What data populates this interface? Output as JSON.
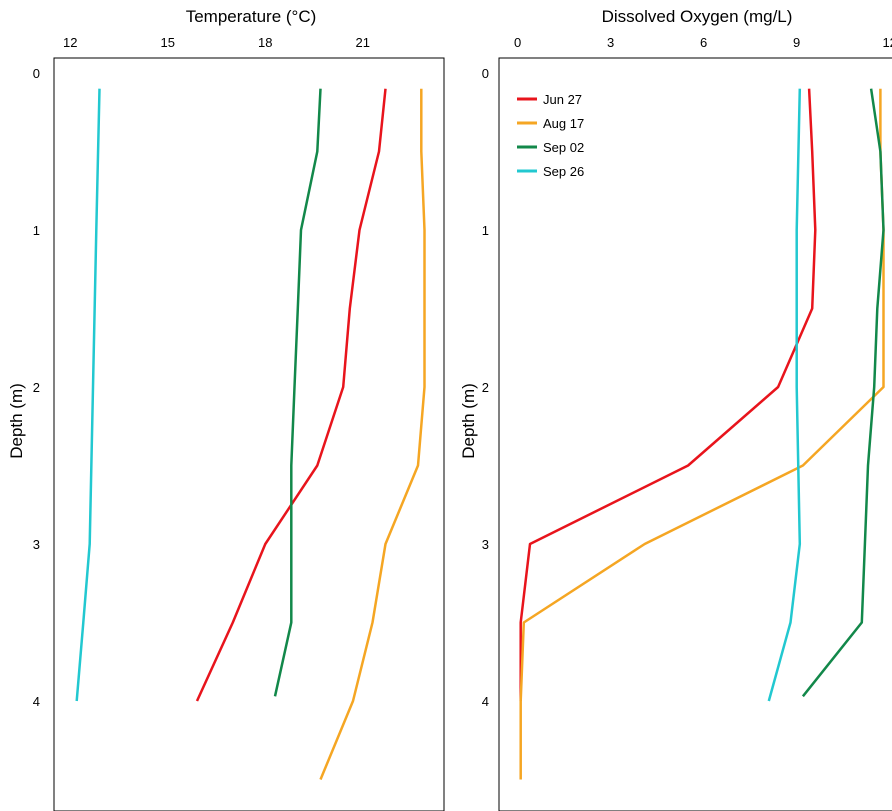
{
  "chart_data": [
    {
      "type": "line",
      "title": "",
      "xlabel": "Temperature (°C)",
      "ylabel": "Depth (m)",
      "x_axis_position": "top",
      "y_reversed": true,
      "xlim": [
        11.5,
        23.5
      ],
      "ylim": [
        0,
        4.7
      ],
      "xticks": [
        "12",
        "15",
        "18",
        "21"
      ],
      "yticks": [
        "0",
        "1",
        "2",
        "3",
        "4"
      ],
      "grid": false,
      "series": [
        {
          "name": "Jun 27",
          "color": "#e8141c",
          "points": [
            [
              21.7,
              0.1
            ],
            [
              21.5,
              0.5
            ],
            [
              20.9,
              1.0
            ],
            [
              20.6,
              1.5
            ],
            [
              20.4,
              2.0
            ],
            [
              19.6,
              2.5
            ],
            [
              18.0,
              3.0
            ],
            [
              17.0,
              3.5
            ],
            [
              15.9,
              4.0
            ]
          ]
        },
        {
          "name": "Aug 17",
          "color": "#f5a623",
          "points": [
            [
              22.8,
              0.1
            ],
            [
              22.8,
              0.5
            ],
            [
              22.9,
              1.0
            ],
            [
              22.9,
              1.5
            ],
            [
              22.9,
              2.0
            ],
            [
              22.7,
              2.5
            ],
            [
              21.7,
              3.0
            ],
            [
              21.3,
              3.5
            ],
            [
              20.7,
              4.0
            ],
            [
              19.7,
              4.5
            ]
          ]
        },
        {
          "name": "Sep 02",
          "color": "#12884a",
          "points": [
            [
              19.7,
              0.1
            ],
            [
              19.6,
              0.5
            ],
            [
              19.1,
              1.0
            ],
            [
              19.0,
              1.5
            ],
            [
              18.9,
              2.0
            ],
            [
              18.8,
              2.5
            ],
            [
              18.8,
              3.0
            ],
            [
              18.8,
              3.5
            ],
            [
              18.3,
              3.97
            ]
          ]
        },
        {
          "name": "Sep 26",
          "color": "#22c8d0",
          "points": [
            [
              12.9,
              0.1
            ],
            [
              12.8,
              1.0
            ],
            [
              12.7,
              2.0
            ],
            [
              12.6,
              3.0
            ],
            [
              12.4,
              3.5
            ],
            [
              12.2,
              4.0
            ]
          ]
        }
      ]
    },
    {
      "type": "line",
      "title": "",
      "xlabel": "Dissolved Oxygen (mg/L)",
      "ylabel": "Depth (m)",
      "x_axis_position": "top",
      "y_reversed": true,
      "xlim": [
        -0.6,
        12.3
      ],
      "ylim": [
        0,
        4.7
      ],
      "xticks": [
        "0",
        "3",
        "6",
        "9",
        "12"
      ],
      "yticks": [
        "0",
        "1",
        "2",
        "3",
        "4"
      ],
      "grid": false,
      "legend": {
        "position": "top-left",
        "entries": [
          "Jun 27",
          "Aug 17",
          "Sep 02",
          "Sep 26"
        ]
      },
      "series": [
        {
          "name": "Jun 27",
          "color": "#e8141c",
          "points": [
            [
              9.4,
              0.1
            ],
            [
              9.5,
              0.5
            ],
            [
              9.6,
              1.0
            ],
            [
              9.5,
              1.5
            ],
            [
              8.4,
              2.0
            ],
            [
              5.5,
              2.5
            ],
            [
              0.4,
              3.0
            ],
            [
              0.1,
              3.5
            ],
            [
              0.1,
              3.75
            ],
            [
              0.1,
              4.0
            ]
          ]
        },
        {
          "name": "Aug 17",
          "color": "#f5a623",
          "points": [
            [
              11.7,
              0.1
            ],
            [
              11.7,
              0.5
            ],
            [
              11.8,
              1.0
            ],
            [
              11.8,
              1.5
            ],
            [
              11.8,
              2.0
            ],
            [
              9.2,
              2.5
            ],
            [
              4.1,
              3.0
            ],
            [
              0.2,
              3.5
            ],
            [
              0.1,
              4.0
            ],
            [
              0.1,
              4.5
            ]
          ]
        },
        {
          "name": "Sep 02",
          "color": "#12884a",
          "points": [
            [
              11.4,
              0.1
            ],
            [
              11.7,
              0.5
            ],
            [
              11.8,
              1.0
            ],
            [
              11.6,
              1.5
            ],
            [
              11.5,
              2.0
            ],
            [
              11.3,
              2.5
            ],
            [
              11.2,
              3.0
            ],
            [
              11.1,
              3.5
            ],
            [
              9.2,
              3.97
            ]
          ]
        },
        {
          "name": "Sep 26",
          "color": "#22c8d0",
          "points": [
            [
              9.1,
              0.1
            ],
            [
              9.0,
              1.0
            ],
            [
              9.0,
              2.0
            ],
            [
              9.1,
              3.0
            ],
            [
              8.8,
              3.5
            ],
            [
              8.1,
              4.0
            ]
          ]
        }
      ]
    }
  ]
}
